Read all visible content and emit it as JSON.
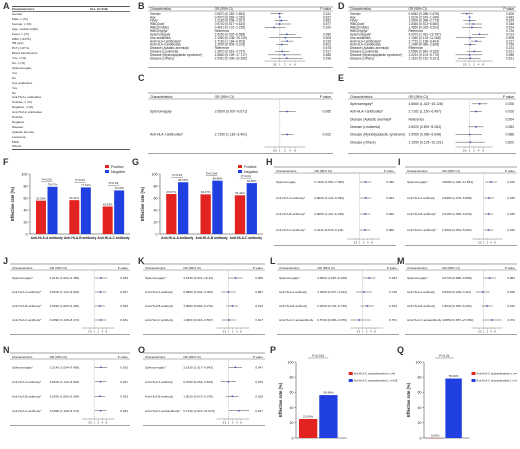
{
  "panel_labels": {
    "A": "A",
    "B": "B",
    "C": "C",
    "D": "D",
    "E": "E",
    "F": "F",
    "G": "G",
    "H": "H",
    "I": "I",
    "J": "J",
    "K": "K",
    "L": "L",
    "M": "M",
    "N": "N",
    "O": "O",
    "P": "P",
    "Q": "Q"
  },
  "panel_a": {
    "header": [
      "Characteristics",
      "ALL (n=119)"
    ],
    "rows": [
      [
        "Gender",
        ""
      ],
      [
        "  Male, n (%)",
        ""
      ],
      [
        "  Female, n (%)",
        ""
      ],
      [
        "Age, median (IQR)",
        ""
      ],
      [
        "Fever, n (%)",
        ""
      ],
      [
        "WBC (×10⁹/L)",
        ""
      ],
      [
        "HB (g/L)",
        ""
      ],
      [
        "PLT (×10⁹/L)",
        ""
      ],
      [
        "Blood transfusions",
        ""
      ],
      [
        "  Yes, n (%)",
        ""
      ],
      [
        "  No, n (%)",
        ""
      ],
      [
        "Splenomegaly",
        ""
      ],
      [
        "  Yes",
        ""
      ],
      [
        "  No",
        ""
      ],
      [
        "Use antibiotics",
        ""
      ],
      [
        "  Yes",
        ""
      ],
      [
        "  No",
        ""
      ],
      [
        "Anti-HLA-I antibodies",
        ""
      ],
      [
        "  Positive, n (%)",
        ""
      ],
      [
        "  Negative, n (%)",
        ""
      ],
      [
        "Anti-HLA-II antibodies",
        ""
      ],
      [
        "  Positive",
        ""
      ],
      [
        "  Negative",
        ""
      ],
      [
        "Disease",
        ""
      ],
      [
        "  Aplastic anemia",
        ""
      ],
      [
        "  Leukemia",
        ""
      ],
      [
        "  MDS",
        ""
      ],
      [
        "  Others",
        ""
      ]
    ]
  },
  "panel_b": {
    "header": [
      "Characteristics",
      "OR (95% CI)",
      "P value"
    ],
    "rows": [
      [
        "Gender",
        "0.9570 (0.282~1.553)",
        "0.331"
      ],
      [
        "Age",
        "0.9970 (0.969~1.020)",
        "0.837"
      ],
      [
        "Fever",
        "1.2180 (0.508~2.927)",
        "0.662"
      ],
      [
        "WBC(low)",
        "0.9730 (0.517~4.610)",
        "0.877"
      ],
      [
        "WBC(middle)",
        "0.4610 (0.131~2.156)",
        "0.320"
      ],
      [
        "WBC(high)#",
        "Reference",
        ""
      ],
      [
        "Splenomegaly",
        "2.6050 (0.902~8.558)",
        "0.080"
      ],
      [
        "Use antibiotics",
        "2.1550 (0.238~19.740)",
        "0.506"
      ],
      [
        "Anti-HLA-I antibodies*",
        "2.7160 (1.184~6.403)",
        "0.019"
      ],
      [
        "Anti-HLA-II antibodies",
        "1.3090 (0.609~3.103)",
        "0.401"
      ],
      [
        "Disease (Aplastic anemia)#",
        "Reference",
        "0.578"
      ],
      [
        "Disease (Leukemia)",
        "1.3670 (0.516~3.737)",
        "0.517"
      ],
      [
        "Disease (Myelodysplastic syndrome)",
        "1.8660 (0.199~17.717)",
        "0.585"
      ],
      [
        "Disease (Others)",
        "2.5410 (0.306~22.356)",
        "0.296"
      ]
    ]
  },
  "panel_c": {
    "header": [
      "Characteristics",
      "OR (95% CI)",
      "P value"
    ],
    "rows": [
      [
        "Splenomegaly",
        "2.6500 (0.907~8.671)",
        "0.085"
      ],
      [
        "Anti-HLA-I antibodies*",
        "2.7260 (1.181~6.401)",
        "0.022"
      ]
    ]
  },
  "panel_d": {
    "header": [
      "Characteristics",
      "OR (95% CI)",
      "P value"
    ],
    "rows": [
      [
        "Gender",
        "0.6940 (0.286~1.676)",
        "0.406"
      ],
      [
        "Age",
        "1.0100 (0.970~1.049)",
        "0.483"
      ],
      [
        "Fever",
        "1.0500 (0.396~2.773)",
        "0.924"
      ],
      [
        "WBC(low)",
        "1.8460 (0.513~6.660)",
        "0.348"
      ],
      [
        "WBC(middle)",
        "1.4550 (0.325~6.523)",
        "0.624"
      ],
      [
        "WBC(high)#",
        "Reference",
        "0.726"
      ],
      [
        "Splenomegaly*",
        "4.6070 (1.491~16.787)",
        "0.013"
      ],
      [
        "Use antibiotics",
        "1.1360 (0.133~11.068)",
        "0.908"
      ],
      [
        "Anti-HLA-I antibodies*",
        "2.7710 (1.196~6.404)",
        "0.017"
      ],
      [
        "Anti-HLA-II antibodies",
        "1.1490 (0.460~2.828)",
        "0.766"
      ],
      [
        "Disease (Aplastic anemia)#",
        "Reference",
        "0.234"
      ],
      [
        "Disease (Leukemia)",
        "2.0560 (0.681~6.326)",
        "0.201"
      ],
      [
        "Disease (Myelodysplastic syndrome)",
        "1.0210 (0.101~6.775)",
        "0.986"
      ],
      [
        "Disease (Others)",
        "1.1610 (0.181~5.321)",
        "0.521"
      ]
    ]
  },
  "panel_e": {
    "header": [
      "Characteristics",
      "OR (95% CI)",
      "P value"
    ],
    "rows": [
      [
        "Splenomegaly*",
        "4.6660 (1.422~15.128)",
        "0.008"
      ],
      [
        "Anti-HLA-I antibodies*",
        "2.7161 (1.150~6.497)",
        "0.026"
      ],
      [
        "Disease (Aplastic anemia)#",
        "Reference",
        "0.504"
      ],
      [
        "Disease (Leukemia)",
        "2.6920 (0.891~8.284)",
        "0.083"
      ],
      [
        "Disease (Myelodysplastic syndrome)",
        "1.0560 (0.085~6.648)",
        "0.988"
      ],
      [
        "Disease (Others)",
        "1.1550 (0.125~10.221)",
        "0.820"
      ]
    ]
  },
  "small_forest_header": [
    "Characteristics",
    "OR (95% CI)",
    "P value"
  ],
  "small_forests": {
    "H": [
      [
        "Splenomegaly",
        "2.7400 (1.051~7.350)",
        "0.039"
      ],
      [
        "Anti-HLA-A antibody*",
        "2.8020 (1.141~6.993)",
        "0.024"
      ],
      [
        "Anti-HLA-B antibody*",
        "2.6050 (1.112~6.138)",
        "0.028"
      ],
      [
        "Anti-HLA-C antibody*",
        "2.4140 (0.976~6.111)",
        "0.058"
      ]
    ],
    "I": [
      [
        "Splenomegaly*",
        "3.8680 (1.320~11.851)",
        "0.016"
      ],
      [
        "Anti-HLA-A antibody",
        "2.6960 (1.079~6.858)",
        "0.036"
      ],
      [
        "Anti-HLA-B antibody*",
        "2.5150 (1.066~6.039)",
        "0.036"
      ],
      [
        "Anti-HLA-C antibody*",
        "2.4520 (1.054~5.902)",
        "0.040"
      ]
    ],
    "J": [
      [
        "Splenomegaly*",
        "3.2140 (1.094~9.459)",
        "0.033"
      ],
      [
        "Anti-HLA-A antibody*",
        "3.0100 (1.142~8.093)",
        "0.027"
      ],
      [
        "Anti-HLA-B antibody*",
        "2.6290 (1.083~6.394)",
        "0.033"
      ],
      [
        "Anti-HLA-C antibody*",
        "3.0090 (1.108~8.172)",
        "0.031"
      ]
    ],
    "K": [
      [
        "Splenomegaly*",
        "3.1840 (0.974~10.44)",
        "0.056"
      ],
      [
        "Anti-HLA-A antibody",
        "0.9900 (0.292~3.364)",
        "0.987"
      ],
      [
        "Anti-HLA-B antibody",
        "1.9060 (0.694~5.270)",
        "0.210"
      ],
      [
        "Anti-HLA-C antibody",
        "1.0660 (0.319~3.557)",
        "0.917"
      ]
    ],
    "L": [
      [
        "Splenomegaly*",
        "3.0620 (1.087~8.918)",
        "0.034"
      ],
      [
        "Anti-HLA-A antibody",
        "1.2690 (0.327~4.914)",
        "0.729"
      ],
      [
        "Anti-HLA-B antibody",
        "2.2030 (0.724~6.735)",
        "0.163"
      ],
      [
        "Anti-HLA-C autoantibody",
        "0.5730 (0.083~3.970)",
        "0.571"
      ]
    ],
    "M": [
      [
        "Splenomegaly*",
        "3.0730 (0.988~9.558)",
        "0.053"
      ],
      [
        "Anti-HLA-A antibody",
        "0.8600 (0.238~3.111)",
        "0.818"
      ],
      [
        "Anti-HLA-B antibody",
        "1.8940 (0.665~5.400)",
        "0.232"
      ],
      [
        "Anti-HLA-C autoantibody",
        "4.8850 (0.857~27.860)",
        "0.074"
      ]
    ],
    "N": [
      [
        "Splenomegaly*",
        "3.2140 (1.094~9.459)",
        "0.033"
      ],
      [
        "Anti-HLA-A antibody*",
        "3.0100 (1.142~8.093)",
        "0.027"
      ],
      [
        "Anti-HLA-B antibody*",
        "2.6290 (1.083~6.394)",
        "0.033"
      ],
      [
        "Anti-HLA-C antibody*",
        "3.0090 (1.108~8.172)",
        "0.031"
      ]
    ],
    "O": [
      [
        "Splenomegaly*",
        "3.1630 (1.017~9.843)",
        "0.047"
      ],
      [
        "Anti-HLA-A antibody",
        "0.9790 (0.264~3.633)",
        "0.975"
      ],
      [
        "Anti-HLA-B antibody",
        "1.9010 (0.672~5.378)",
        "0.226"
      ],
      [
        "Anti-HLA-C autoantibody*",
        "5.7140 (1.021~31.970)",
        "0.047"
      ]
    ]
  },
  "forest_axis_ticks": [
    "0.5",
    "1",
    "2",
    "4",
    "8"
  ],
  "panel_f": {
    "ylabel": "Effective rate (%)",
    "legend": [
      "Positive",
      "Negative"
    ],
    "pvals": [
      "P=0.03",
      "P=0.03",
      "P=0.04"
    ],
    "colors": {
      "positive": "#e32222",
      "negative": "#1f3fe0"
    },
    "yticks": [
      "0",
      "20",
      "40",
      "60",
      "80",
      "100"
    ]
  },
  "panel_g": {
    "ylabel": "Effective rate (%)",
    "legend": [
      "Positive",
      "Negative"
    ],
    "pvals": [
      "P=0.03",
      "P=0.004",
      "P=0.04"
    ],
    "colors": {
      "positive": "#e32222",
      "negative": "#1f3fe0"
    },
    "yticks": [
      "0",
      "20",
      "40",
      "60",
      "80",
      "100"
    ]
  },
  "panel_p": {
    "ylabel": "Effective rate (%)",
    "pval": "P=0.021",
    "legend": [
      "Anti-HLA-C autoantibodies(+), n=8",
      "Anti-HLA-C autoantibodies(-), n=108"
    ],
    "colors": {
      "positive": "#e32222",
      "negative": "#1f3fe0"
    },
    "yticks": [
      "0",
      "20",
      "40",
      "60",
      "80",
      "100"
    ]
  },
  "panel_q": {
    "ylabel": "Effective rate (%)",
    "pval": "P=0.01",
    "legend": [
      "Anti-HLA-C autoantibodies(+), n=4",
      "Anti-HLA-C autoantibodies(-), n=115"
    ],
    "colors": {
      "positive": "#e32222",
      "negative": "#1f3fe0"
    },
    "yticks": [
      "0",
      "20",
      "40",
      "60",
      "80",
      "100"
    ]
  },
  "chart_data": [
    {
      "type": "bar",
      "panel": "F",
      "ylabel": "Effective rate (%)",
      "ylim": [
        0,
        100
      ],
      "categories": [
        "Anti-HLA-A antibody",
        "Anti-HLA-B antibody",
        "Anti-HLA-C antibody"
      ],
      "series": [
        {
          "name": "Positive",
          "values": [
            55.56,
            56.41,
            45.83
          ]
        },
        {
          "name": "Negative",
          "values": [
            78.67,
            77.61,
            72.63
          ]
        }
      ],
      "annotations": [
        "P=0.03",
        "P=0.03",
        "P=0.04"
      ]
    },
    {
      "type": "bar",
      "panel": "G",
      "ylabel": "Effective rate (%)",
      "ylim": [
        0,
        100
      ],
      "categories": [
        "Anti-HLA-A antibody",
        "Anti-HLA-B antibody",
        "Anti-HLA-C antibody"
      ],
      "series": [
        {
          "name": "Positive",
          "values": [
            66.67,
            66.07,
            64.44
          ]
        },
        {
          "name": "Negative",
          "values": [
            86.23,
            88.89,
            84.85
          ]
        }
      ],
      "annotations": [
        "P=0.03",
        "P=0.004",
        "P=0.04"
      ]
    },
    {
      "type": "bar",
      "panel": "P",
      "ylabel": "Effective rate (%)",
      "ylim": [
        0,
        100
      ],
      "categories": [
        "Anti-HLA-C autoantibodies(+), n=8",
        "Anti-HLA-C autoantibodies(-), n=108"
      ],
      "values": [
        25.0,
        56.48
      ],
      "annotations": [
        "P=0.021"
      ]
    },
    {
      "type": "bar",
      "panel": "Q",
      "ylabel": "Effective rate (%)",
      "ylim": [
        0,
        100
      ],
      "categories": [
        "Anti-HLA-C autoantibodies(+), n=4",
        "Anti-HLA-C autoantibodies(-), n=115"
      ],
      "values": [
        0.0,
        78.26
      ],
      "annotations": [
        "P=0.01"
      ]
    }
  ]
}
